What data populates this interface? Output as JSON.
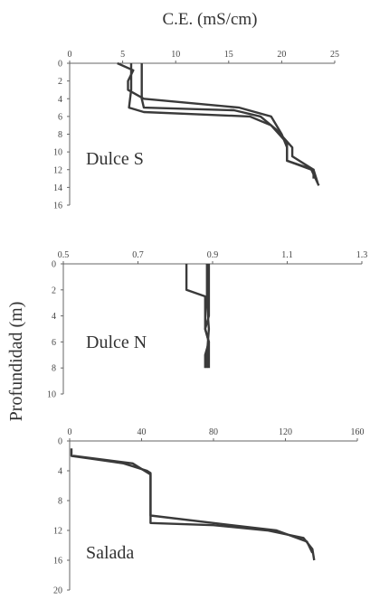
{
  "figure": {
    "top_title": "C.E. (mS/cm)",
    "y_title": "Profundidad (m)"
  },
  "chart_data": [
    {
      "type": "line",
      "label": "Dulce S",
      "xlim": [
        0,
        25
      ],
      "xticks": [
        0,
        5,
        10,
        15,
        20,
        25
      ],
      "ylim": [
        0,
        16
      ],
      "yticks": [
        0,
        2,
        4,
        6,
        8,
        10,
        12,
        14,
        16
      ],
      "series": [
        {
          "values": [
            [
              4.5,
              0
            ],
            [
              6,
              0.8
            ],
            [
              5.5,
              2
            ],
            [
              5.5,
              3
            ],
            [
              7,
              4
            ],
            [
              16,
              5
            ],
            [
              19,
              6
            ],
            [
              20,
              8
            ],
            [
              20.5,
              9.5
            ],
            [
              20.5,
              11
            ],
            [
              22.8,
              12
            ],
            [
              23.5,
              13.8
            ]
          ]
        },
        {
          "values": [
            [
              6.8,
              0
            ],
            [
              6.8,
              2
            ],
            [
              6.8,
              4
            ],
            [
              7,
              5
            ],
            [
              15.5,
              5.3
            ],
            [
              18,
              6
            ],
            [
              19.5,
              7.5
            ],
            [
              21,
              9.5
            ],
            [
              21,
              10.5
            ],
            [
              23,
              12
            ],
            [
              23.4,
              13.5
            ]
          ]
        },
        {
          "values": [
            [
              5.8,
              0
            ],
            [
              5.8,
              3
            ],
            [
              5.6,
              5
            ],
            [
              7,
              5.5
            ],
            [
              17,
              6
            ],
            [
              19,
              7
            ],
            [
              20.5,
              9
            ],
            [
              20.5,
              11
            ],
            [
              23,
              12
            ],
            [
              23,
              13
            ]
          ]
        }
      ]
    },
    {
      "type": "line",
      "label": "Dulce N",
      "xlim": [
        0.5,
        1.3
      ],
      "xticks": [
        0.5,
        0.7,
        0.9,
        1.1,
        1.3
      ],
      "ylim": [
        0,
        10
      ],
      "yticks": [
        0,
        2,
        4,
        6,
        8,
        10
      ],
      "series": [
        {
          "values": [
            [
              0.83,
              0
            ],
            [
              0.83,
              2
            ],
            [
              0.88,
              2.5
            ],
            [
              0.88,
              5
            ],
            [
              0.89,
              6
            ],
            [
              0.88,
              7
            ],
            [
              0.88,
              8
            ]
          ]
        },
        {
          "values": [
            [
              0.89,
              0
            ],
            [
              0.89,
              2
            ],
            [
              0.89,
              4
            ],
            [
              0.88,
              5
            ],
            [
              0.89,
              6
            ],
            [
              0.89,
              8
            ]
          ]
        },
        {
          "values": [
            [
              0.885,
              0
            ],
            [
              0.885,
              3
            ],
            [
              0.89,
              5
            ],
            [
              0.885,
              7
            ],
            [
              0.885,
              8
            ]
          ]
        }
      ]
    },
    {
      "type": "line",
      "label": "Salada",
      "xlim": [
        0,
        160
      ],
      "xticks": [
        0,
        40,
        80,
        120,
        160
      ],
      "ylim": [
        0,
        20
      ],
      "yticks": [
        0,
        4,
        8,
        12,
        16,
        20
      ],
      "series": [
        {
          "values": [
            [
              1,
              1
            ],
            [
              1,
              2
            ],
            [
              30,
              3
            ],
            [
              43,
              4
            ],
            [
              45,
              4.3
            ],
            [
              45,
              11
            ],
            [
              80,
              11.3
            ],
            [
              110,
              12
            ],
            [
              130,
              13
            ],
            [
              135,
              14.5
            ],
            [
              136,
              16
            ]
          ]
        },
        {
          "values": [
            [
              2,
              2
            ],
            [
              35,
              3
            ],
            [
              45,
              4.5
            ],
            [
              45,
              10
            ],
            [
              80,
              11
            ],
            [
              115,
              12
            ],
            [
              132,
              13.5
            ],
            [
              135,
              15
            ]
          ]
        }
      ]
    }
  ]
}
